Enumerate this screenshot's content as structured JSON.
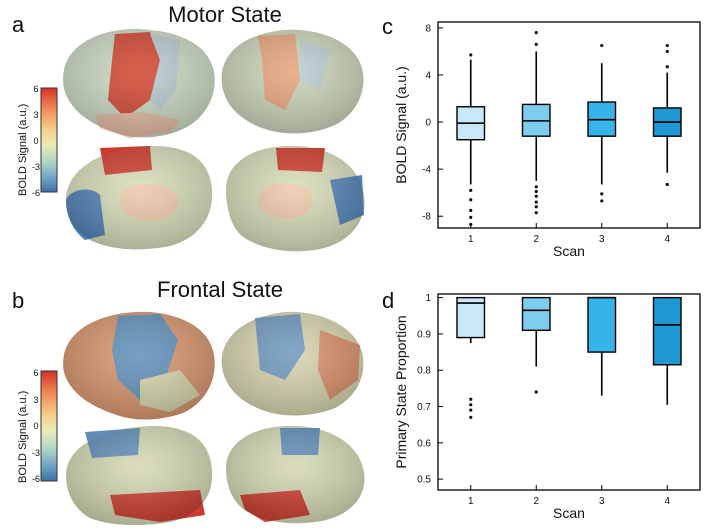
{
  "panels": {
    "a": {
      "letter": "a",
      "title": "Motor State"
    },
    "b": {
      "letter": "b",
      "title": "Frontal State"
    },
    "c": {
      "letter": "c"
    },
    "d": {
      "letter": "d"
    }
  },
  "colorbar": {
    "label": "BOLD Signal (a.u.)",
    "ticks": [
      "6",
      "3",
      "0",
      "-3",
      "-6"
    ],
    "colors": [
      "#d73027",
      "#f46d43",
      "#fdae61",
      "#fee090",
      "#e0f0c0",
      "#abd9e9",
      "#74add1",
      "#4575b4"
    ]
  },
  "chart_data": [
    {
      "type": "box",
      "panel": "c",
      "xlabel": "Scan",
      "ylabel": "BOLD Signal (a.u.)",
      "categories": [
        "1",
        "2",
        "3",
        "4"
      ],
      "ylim": [
        -9,
        8.5
      ],
      "yticks": [
        "8",
        "4",
        "0",
        "-4",
        "-8"
      ],
      "ytick_values": [
        8,
        4,
        0,
        -4,
        -8
      ],
      "colors": [
        "#c8e7f7",
        "#7fcdee",
        "#36b4ea",
        "#1f98d4"
      ],
      "boxes": [
        {
          "q1": -1.5,
          "median": -0.1,
          "q3": 1.3,
          "whisker_low": -5.3,
          "whisker_high": 5.3,
          "outliers": [
            5.7,
            -5.8,
            -6.6,
            -7.5,
            -8.1,
            -8.7
          ]
        },
        {
          "q1": -1.2,
          "median": 0.1,
          "q3": 1.5,
          "whisker_low": -5.0,
          "whisker_high": 6.0,
          "outliers": [
            7.6,
            6.6,
            -5.5,
            -5.9,
            -6.3,
            -6.8,
            -7.2,
            -7.7
          ]
        },
        {
          "q1": -1.2,
          "median": 0.2,
          "q3": 1.7,
          "whisker_low": -5.3,
          "whisker_high": 5.0,
          "outliers": [
            6.5,
            -6.1,
            -6.7
          ]
        },
        {
          "q1": -1.2,
          "median": 0.0,
          "q3": 1.2,
          "whisker_low": -4.3,
          "whisker_high": 4.2,
          "outliers": [
            6.5,
            6.0,
            4.7,
            -5.3
          ]
        }
      ]
    },
    {
      "type": "box",
      "panel": "d",
      "xlabel": "Scan",
      "ylabel": "Primary State Proportion",
      "categories": [
        "1",
        "2",
        "3",
        "4"
      ],
      "ylim": [
        0.47,
        1.01
      ],
      "yticks": [
        "1",
        "0.9",
        "0.8",
        "0.7",
        "0.6",
        "0.5"
      ],
      "ytick_values": [
        1,
        0.9,
        0.8,
        0.7,
        0.6,
        0.5
      ],
      "colors": [
        "#c8e7f7",
        "#7fcdee",
        "#36b4ea",
        "#1f98d4"
      ],
      "boxes": [
        {
          "q1": 0.89,
          "median": 0.985,
          "q3": 1.0,
          "whisker_low": 0.875,
          "whisker_high": 1.0,
          "outliers": [
            0.72,
            0.705,
            0.69,
            0.67
          ]
        },
        {
          "q1": 0.91,
          "median": 0.965,
          "q3": 1.0,
          "whisker_low": 0.81,
          "whisker_high": 1.0,
          "outliers": [
            0.74
          ]
        },
        {
          "q1": 0.85,
          "median": 1.0,
          "q3": 1.0,
          "whisker_low": 0.73,
          "whisker_high": 1.0,
          "outliers": []
        },
        {
          "q1": 0.815,
          "median": 0.925,
          "q3": 1.0,
          "whisker_low": 0.705,
          "whisker_high": 1.0,
          "outliers": []
        }
      ]
    }
  ]
}
